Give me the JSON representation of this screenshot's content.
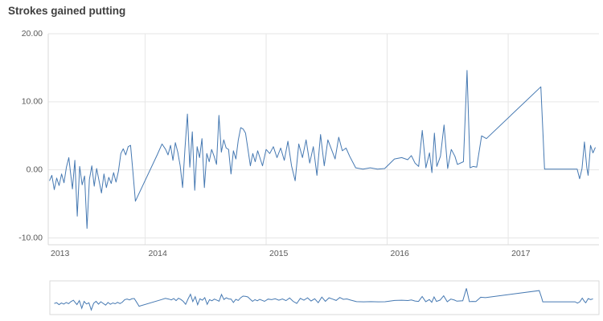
{
  "header": {
    "title": "Strokes gained putting"
  },
  "colors": {
    "line": "#4679b2",
    "grid": "#e6e6e6",
    "axis": "#d9d9d9",
    "tick_text": "#595959",
    "title_text": "#404040",
    "background": "#ffffff"
  },
  "chart_data": {
    "type": "line",
    "title": "Strokes gained putting",
    "xlabel": "",
    "ylabel": "",
    "grid": true,
    "legend_position": "none",
    "has_navigator": true,
    "x_domain": [
      2013.2,
      2017.75
    ],
    "y_domain": [
      -11,
      20
    ],
    "y_ticks": [
      {
        "value": 20,
        "label": "20.00"
      },
      {
        "value": 10,
        "label": "10.00"
      },
      {
        "value": 0,
        "label": "0.00"
      },
      {
        "value": -10,
        "label": "-10.00"
      }
    ],
    "x_ticks": [
      {
        "value": 2013,
        "label": "2013"
      },
      {
        "value": 2014,
        "label": "2014"
      },
      {
        "value": 2015,
        "label": "2015"
      },
      {
        "value": 2016,
        "label": "2016"
      },
      {
        "value": 2017,
        "label": "2017"
      }
    ],
    "series": [
      {
        "name": "Strokes gained putting",
        "points": [
          [
            2013.21,
            -1.6
          ],
          [
            2013.23,
            -0.8
          ],
          [
            2013.25,
            -2.9
          ],
          [
            2013.27,
            -1.2
          ],
          [
            2013.29,
            -2.3
          ],
          [
            2013.31,
            -0.6
          ],
          [
            2013.33,
            -1.9
          ],
          [
            2013.35,
            0.4
          ],
          [
            2013.37,
            1.8
          ],
          [
            2013.385,
            -0.6
          ],
          [
            2013.4,
            -2.8
          ],
          [
            2013.42,
            1.4
          ],
          [
            2013.44,
            -6.8
          ],
          [
            2013.46,
            0.5
          ],
          [
            2013.48,
            -2.2
          ],
          [
            2013.5,
            -0.9
          ],
          [
            2013.52,
            -8.6
          ],
          [
            2013.54,
            -1.4
          ],
          [
            2013.56,
            0.6
          ],
          [
            2013.58,
            -2.4
          ],
          [
            2013.6,
            0.2
          ],
          [
            2013.62,
            -1.6
          ],
          [
            2013.64,
            -3.4
          ],
          [
            2013.66,
            -0.6
          ],
          [
            2013.68,
            -2.6
          ],
          [
            2013.7,
            -1.1
          ],
          [
            2013.72,
            -2.0
          ],
          [
            2013.74,
            -0.4
          ],
          [
            2013.76,
            -1.8
          ],
          [
            2013.78,
            -0.2
          ],
          [
            2013.8,
            2.4
          ],
          [
            2013.82,
            3.1
          ],
          [
            2013.84,
            2.2
          ],
          [
            2013.86,
            3.4
          ],
          [
            2013.88,
            3.6
          ],
          [
            2013.9,
            -0.4
          ],
          [
            2013.92,
            -4.6
          ],
          [
            2014.1,
            2.2
          ],
          [
            2014.14,
            3.8
          ],
          [
            2014.17,
            3.0
          ],
          [
            2014.19,
            2.2
          ],
          [
            2014.21,
            3.6
          ],
          [
            2014.23,
            1.4
          ],
          [
            2014.25,
            4.0
          ],
          [
            2014.27,
            2.6
          ],
          [
            2014.29,
            0.6
          ],
          [
            2014.31,
            -2.6
          ],
          [
            2014.33,
            3.2
          ],
          [
            2014.35,
            8.2
          ],
          [
            2014.37,
            0.4
          ],
          [
            2014.39,
            5.6
          ],
          [
            2014.41,
            -3.0
          ],
          [
            2014.43,
            3.4
          ],
          [
            2014.45,
            1.8
          ],
          [
            2014.47,
            4.6
          ],
          [
            2014.49,
            -2.6
          ],
          [
            2014.51,
            2.4
          ],
          [
            2014.53,
            1.2
          ],
          [
            2014.55,
            3.0
          ],
          [
            2014.57,
            2.0
          ],
          [
            2014.59,
            0.8
          ],
          [
            2014.61,
            8.0
          ],
          [
            2014.63,
            2.6
          ],
          [
            2014.65,
            4.4
          ],
          [
            2014.67,
            3.2
          ],
          [
            2014.69,
            3.0
          ],
          [
            2014.71,
            -0.6
          ],
          [
            2014.73,
            2.8
          ],
          [
            2014.75,
            1.6
          ],
          [
            2014.77,
            4.4
          ],
          [
            2014.79,
            6.2
          ],
          [
            2014.81,
            6.0
          ],
          [
            2014.83,
            5.4
          ],
          [
            2014.85,
            3.0
          ],
          [
            2014.87,
            0.6
          ],
          [
            2014.89,
            2.4
          ],
          [
            2014.91,
            1.2
          ],
          [
            2014.93,
            2.8
          ],
          [
            2014.97,
            0.6
          ],
          [
            2015.0,
            3.0
          ],
          [
            2015.03,
            2.4
          ],
          [
            2015.06,
            3.4
          ],
          [
            2015.09,
            1.8
          ],
          [
            2015.12,
            3.2
          ],
          [
            2015.15,
            1.4
          ],
          [
            2015.18,
            4.2
          ],
          [
            2015.21,
            0.6
          ],
          [
            2015.24,
            -1.6
          ],
          [
            2015.27,
            3.8
          ],
          [
            2015.3,
            1.8
          ],
          [
            2015.33,
            4.4
          ],
          [
            2015.36,
            1.0
          ],
          [
            2015.39,
            3.4
          ],
          [
            2015.42,
            -0.8
          ],
          [
            2015.45,
            5.2
          ],
          [
            2015.48,
            0.6
          ],
          [
            2015.51,
            4.4
          ],
          [
            2015.54,
            3.0
          ],
          [
            2015.57,
            1.6
          ],
          [
            2015.6,
            4.8
          ],
          [
            2015.63,
            2.8
          ],
          [
            2015.66,
            3.2
          ],
          [
            2015.69,
            2.0
          ],
          [
            2015.74,
            0.3
          ],
          [
            2015.8,
            0.1
          ],
          [
            2015.86,
            0.3
          ],
          [
            2015.92,
            0.1
          ],
          [
            2015.98,
            0.2
          ],
          [
            2016.06,
            1.6
          ],
          [
            2016.12,
            1.8
          ],
          [
            2016.17,
            1.5
          ],
          [
            2016.2,
            2.1
          ],
          [
            2016.23,
            1.0
          ],
          [
            2016.26,
            0.5
          ],
          [
            2016.29,
            5.8
          ],
          [
            2016.32,
            0.3
          ],
          [
            2016.35,
            2.5
          ],
          [
            2016.37,
            -0.4
          ],
          [
            2016.39,
            5.4
          ],
          [
            2016.41,
            0.5
          ],
          [
            2016.44,
            2.0
          ],
          [
            2016.47,
            6.6
          ],
          [
            2016.5,
            0.2
          ],
          [
            2016.53,
            3.0
          ],
          [
            2016.56,
            2.0
          ],
          [
            2016.58,
            0.8
          ],
          [
            2016.63,
            1.2
          ],
          [
            2016.66,
            14.6
          ],
          [
            2016.685,
            0.3
          ],
          [
            2016.71,
            0.5
          ],
          [
            2016.74,
            0.4
          ],
          [
            2016.78,
            5.0
          ],
          [
            2016.82,
            4.6
          ],
          [
            2017.27,
            12.2
          ],
          [
            2017.29,
            4.4
          ],
          [
            2017.3,
            0.1
          ],
          [
            2017.57,
            0.1
          ],
          [
            2017.59,
            -1.3
          ],
          [
            2017.61,
            0.2
          ],
          [
            2017.63,
            4.1
          ],
          [
            2017.65,
            0.3
          ],
          [
            2017.66,
            -0.8
          ],
          [
            2017.68,
            3.6
          ],
          [
            2017.7,
            2.5
          ],
          [
            2017.72,
            3.3
          ]
        ]
      }
    ]
  }
}
